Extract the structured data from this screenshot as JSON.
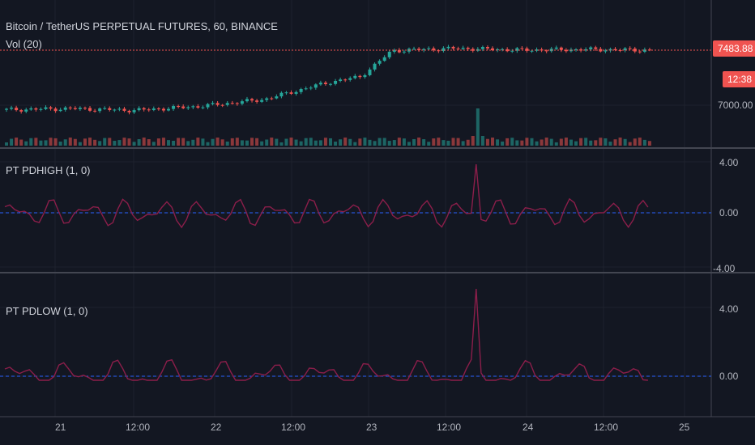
{
  "header": {
    "symbol": "Bitcoin / TetherUS PERPETUAL FUTURES, 60, BINANCE",
    "volume_label": "Vol (20)",
    "last_price": "7483.88",
    "countdown": "12:38"
  },
  "colors": {
    "up": "#26a69a",
    "down": "#ef5350",
    "indicator": "#8b1e4a",
    "zero_line": "#2962ff",
    "background": "#131722",
    "grid": "#2a2e39"
  },
  "chart_data": [
    {
      "type": "candlestick",
      "title": "Bitcoin / TetherUS PERPETUAL FUTURES, 60, BINANCE",
      "yticks": [
        "7000.00"
      ],
      "price_line": 7483.88,
      "ylim": [
        6880,
        7600
      ],
      "description_points": {
        "x": [
          0,
          10,
          20,
          30,
          40,
          50,
          55,
          60,
          70,
          80,
          90,
          100
        ],
        "close": [
          6960,
          6970,
          6955,
          6990,
          7050,
          7200,
          7250,
          7480,
          7500,
          7485,
          7490,
          7484
        ]
      },
      "volume_label": "Vol (20)"
    },
    {
      "type": "line",
      "title": "PT PDHIGH (1, 0)",
      "yticks": [
        "4.00",
        "0.00",
        "-4.00"
      ],
      "ylim": [
        -4.6,
        5.2
      ],
      "reference_line": 0
    },
    {
      "type": "line",
      "title": "PT PDLOW (1, 0)",
      "yticks": [
        "4.00",
        "0.00"
      ],
      "ylim": [
        -1.2,
        7.0
      ],
      "reference_line": 0
    }
  ],
  "xaxis": {
    "ticks": [
      "21",
      "12:00",
      "22",
      "12:00",
      "23",
      "12:00",
      "24",
      "12:00",
      "25"
    ]
  }
}
